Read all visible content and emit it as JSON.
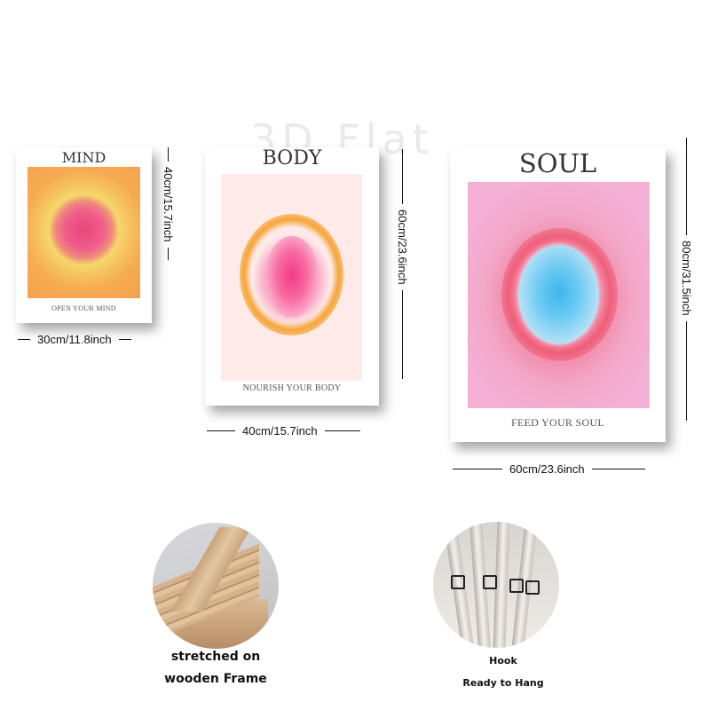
{
  "watermark": "3D Flat",
  "posters": {
    "mind": {
      "title": "MIND",
      "caption": "OPEN YOUR MIND",
      "width_label": "30cm/11.8inch",
      "height_label": "40cm/15.7inch",
      "colors": {
        "outer": "#f6a04e",
        "core": "#e8457a"
      }
    },
    "body": {
      "title": "BODY",
      "caption": "NOURISH YOUR BODY",
      "width_label": "40cm/15.7inch",
      "height_label": "60cm/23.6inch",
      "colors": {
        "outer": "#cfe6f6",
        "ring": "#f5a232",
        "core": "#f33a84"
      }
    },
    "soul": {
      "title": "SOUL",
      "caption": "FEED YOUR SOUL",
      "width_label": "60cm/23.6inch",
      "height_label": "80cm/31.5inch",
      "colors": {
        "outer": "#f5b0d6",
        "ring": "#ee5670",
        "core": "#3cb6ee"
      }
    }
  },
  "features": {
    "frame": {
      "line1": "stretched on",
      "line2": "wooden Frame"
    },
    "hook": {
      "line1": "Hook",
      "line2": "Ready to Hang"
    }
  }
}
